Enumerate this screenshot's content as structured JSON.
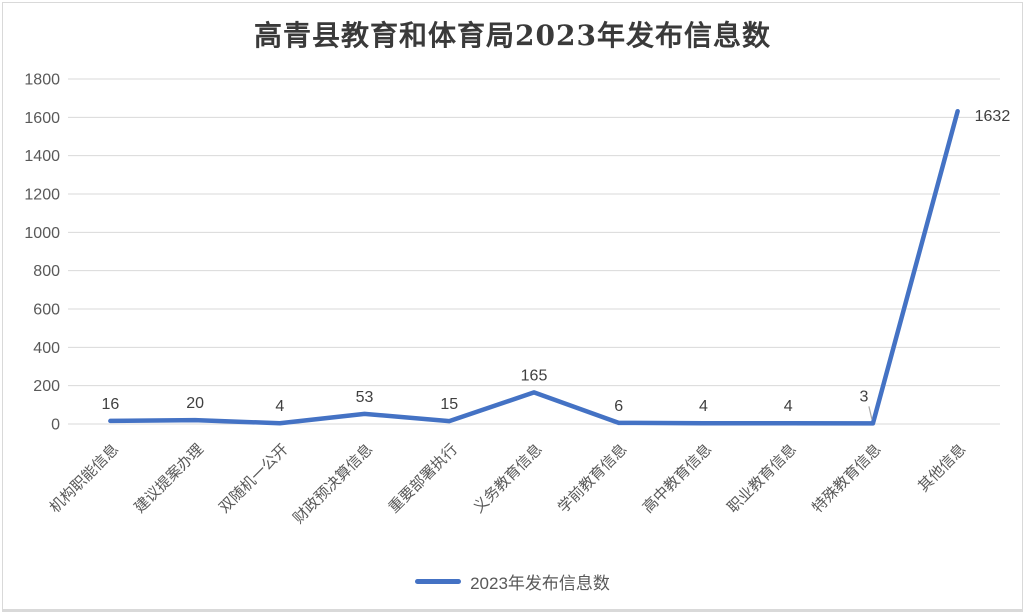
{
  "chart_data": {
    "type": "line",
    "title": "高青县教育和体育局2023年发布信息数",
    "categories": [
      "机构职能信息",
      "建议提案办理",
      "双随机一公开",
      "财政预决算信息",
      "重要部署执行",
      "义务教育信息",
      "学前教育信息",
      "高中教育信息",
      "职业教育信息",
      "特殊教育信息",
      "其他信息"
    ],
    "series": [
      {
        "name": "2023年发布信息数",
        "values": [
          16,
          20,
          4,
          53,
          15,
          165,
          6,
          4,
          4,
          3,
          1632
        ]
      }
    ],
    "data_labels": [
      16,
      20,
      4,
      53,
      15,
      165,
      6,
      4,
      4,
      3,
      1632
    ],
    "xlabel": "",
    "ylabel": "",
    "ylim": [
      0,
      1800
    ],
    "yticks": [
      0,
      200,
      400,
      600,
      800,
      1000,
      1200,
      1400,
      1600,
      1800
    ],
    "grid": "horizontal-only",
    "legend": {
      "position": "bottom",
      "label": "2023年发布信息数"
    },
    "colors": {
      "line": "#4472C4",
      "gridline": "#D9D9D9",
      "axis_text": "#595959",
      "data_label": "#404040",
      "title_text": "#3A3A3A",
      "leader_line": "#A6A6A6",
      "frame_border": "#D9D9D9"
    }
  }
}
